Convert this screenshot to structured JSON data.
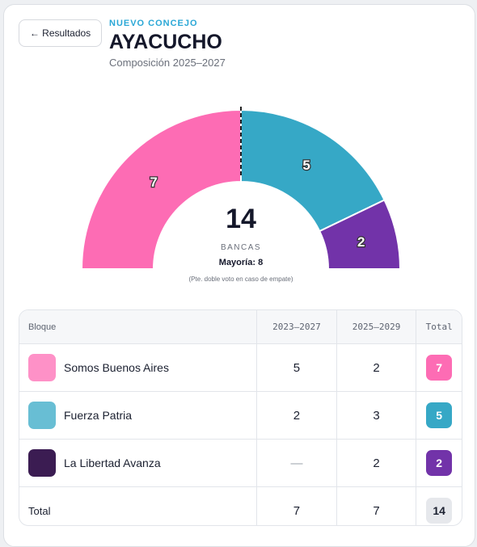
{
  "back_button": "← Resultados",
  "header": {
    "kicker": "NUEVO CONCEJO",
    "title": "AYACUCHO",
    "subtitle": "Composición 2025–2027"
  },
  "chart_data": {
    "type": "half-donut",
    "categories": [
      "Somos Buenos Aires",
      "Fuerza Patria",
      "La Libertad Avanza"
    ],
    "values": [
      7,
      5,
      2
    ],
    "colors": [
      "#fd6cb4",
      "#36a8c6",
      "#7233a9"
    ],
    "center_value": 14,
    "center_label": "BANCAS",
    "majority": "Mayoría: 8",
    "note": "(Pte. doble voto en caso de empate)"
  },
  "table": {
    "columns": [
      "Bloque",
      "2023–2027",
      "2025–2029",
      "Total"
    ],
    "rows": [
      [
        "Somos Buenos Aires",
        5,
        2,
        7
      ],
      [
        "Fuerza Patria",
        2,
        3,
        5
      ],
      [
        "La Libertad Avanza",
        "—",
        2,
        2
      ],
      [
        "Total",
        7,
        7,
        14
      ]
    ]
  }
}
